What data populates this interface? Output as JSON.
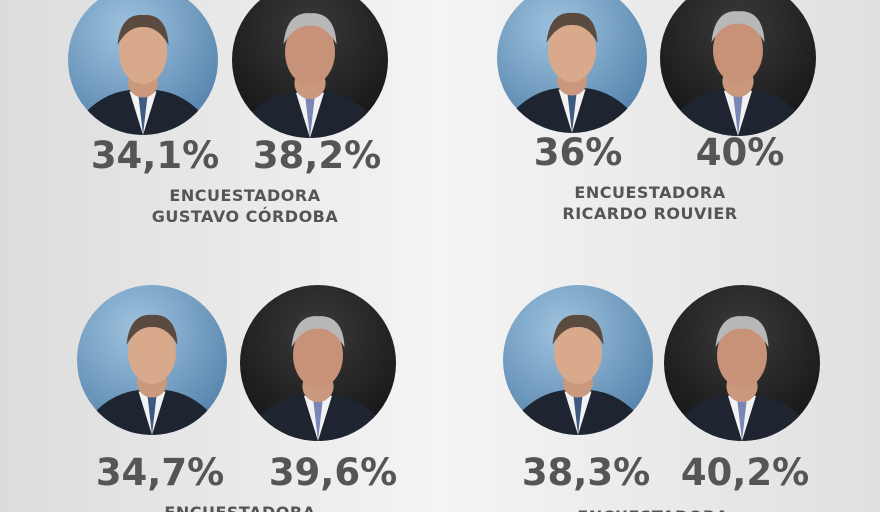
{
  "polls": [
    {
      "left": "34,1%",
      "right": "38,2%",
      "pollster": [
        "ENCUESTADORA",
        "GUSTAVO CÓRDOBA"
      ]
    },
    {
      "left": "36%",
      "right": "40%",
      "pollster": [
        "ENCUESTADORA",
        "RICARDO ROUVIER"
      ]
    },
    {
      "left": "34,7%",
      "right": "39,6%",
      "pollster": [
        "ENCUESTADORA"
      ]
    },
    {
      "left": "38,3%",
      "right": "40,2%",
      "pollster": [
        "ENCUESTADORA"
      ]
    }
  ]
}
